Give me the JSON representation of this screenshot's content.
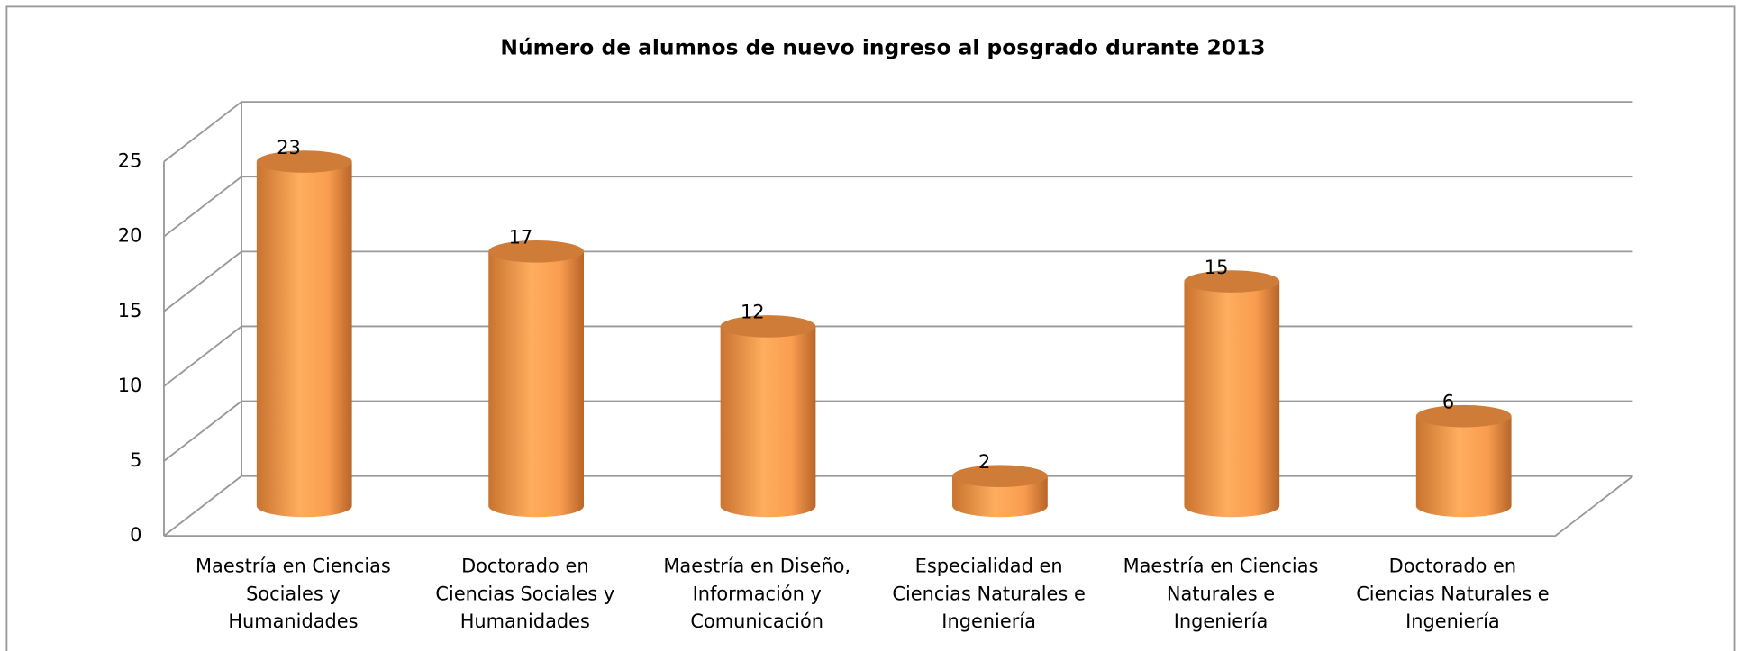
{
  "chart_data": {
    "type": "bar3d",
    "title": "Número de alumnos de nuevo ingreso al posgrado durante 2013",
    "categories": [
      "Maestría en Ciencias Sociales y Humanidades",
      "Doctorado en Ciencias Sociales y Humanidades",
      "Maestría en Diseño, Información y Comunicación",
      "Especialidad en Ciencias Naturales e Ingeniería",
      "Maestría en Ciencias Naturales e Ingeniería",
      "Doctorado en Ciencias Naturales e Ingeniería"
    ],
    "values": [
      23,
      17,
      12,
      2,
      15,
      6
    ],
    "color": "#f79646",
    "ylim": [
      0,
      25
    ],
    "yticks": [
      0,
      5,
      10,
      15,
      20,
      25
    ],
    "grid": true
  }
}
